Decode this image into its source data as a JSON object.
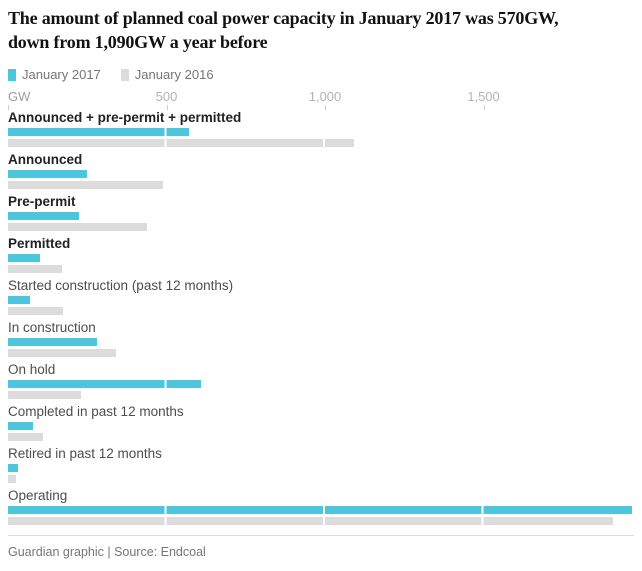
{
  "header": {
    "title_line1": "The amount of planned coal power capacity in January 2017 was 570GW,",
    "title_line2": "down from 1,090GW a year before"
  },
  "legend": {
    "items": [
      {
        "label": "January 2017",
        "color": "#4dc5dc"
      },
      {
        "label": "January 2016",
        "color": "#dcdcdc"
      }
    ]
  },
  "axis": {
    "unit_label": "GW",
    "tick_labels": [
      "500",
      "1,000",
      "1,500"
    ]
  },
  "chart_data": {
    "type": "bar",
    "orientation": "horizontal",
    "title": "The amount of planned coal power capacity in January 2017 was 570GW, down from 1,090GW a year before",
    "unit": "GW",
    "categories": [
      "Announced + pre-permit + permitted",
      "Announced",
      "Pre-permit",
      "Permitted",
      "Started construction (past 12 months)",
      "In construction",
      "On hold",
      "Completed in past 12 months",
      "Retired in past 12 months",
      "Operating"
    ],
    "series": [
      {
        "name": "January 2017",
        "color": "#4dc5dc",
        "values": [
          570,
          250,
          225,
          100,
          70,
          280,
          610,
          80,
          30,
          1970
        ]
      },
      {
        "name": "January 2016",
        "color": "#dcdcdc",
        "values": [
          1090,
          490,
          440,
          170,
          175,
          340,
          230,
          110,
          25,
          1910
        ]
      }
    ],
    "xlim": [
      0,
      2000
    ],
    "x_ticks": [
      500,
      1000,
      1500
    ],
    "bold_categories": [
      0,
      1,
      2,
      3
    ],
    "legend_position": "top",
    "gridlines": "white vertical gaps over bars at each tick"
  },
  "footer": {
    "credit": "Guardian graphic | Source: Endcoal"
  }
}
